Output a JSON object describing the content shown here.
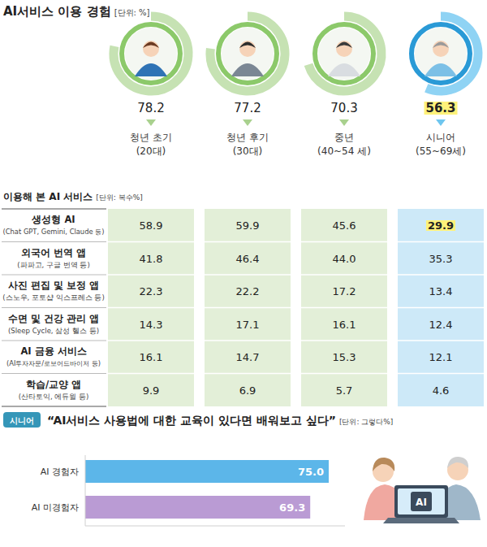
{
  "chart_data": [
    {
      "type": "donut",
      "title": "AI서비스 이용 경험",
      "subtitle": "[단위: %]",
      "categories": [
        "청년 초기 (20대)",
        "청년 후기 (30대)",
        "중년 (40~54 세)",
        "시니어 (55~69세)"
      ],
      "values": [
        78.2,
        77.2,
        70.3,
        56.3
      ],
      "colors": [
        "#c6e2b3",
        "#c6e2b3",
        "#c6e2b3",
        "#8fd3f4"
      ],
      "ylim": [
        0,
        100
      ],
      "data_labels": true
    },
    {
      "type": "bar",
      "orientation": "horizontal",
      "title": "“AI서비스 사용법에 대한 교육이 있다면 배워보고 싶다”",
      "subtitle": "[단위: 그렇다%]",
      "categories": [
        "AI 경험자",
        "AI 미경험자"
      ],
      "values": [
        75.0,
        69.3
      ],
      "value_labels": [
        "75.0",
        "69.3"
      ],
      "colors": [
        "#5cb6e9",
        "#ba9bd4"
      ],
      "xlim": [
        0,
        80
      ],
      "xticks": [],
      "tick_labels": "y",
      "data_labels": true
    }
  ],
  "table": {
    "title": "이용해 본 AI 서비스",
    "subtitle": "[단위: 복수%]",
    "rows": [
      {
        "label": "생성형 AI",
        "note": "(Chat GPT, Gemini, Claude 등)",
        "values": [
          "58.9",
          "59.9",
          "45.6",
          "29.9"
        ]
      },
      {
        "label": "외국어 번역 앱",
        "note": "(파파고, 구글 번역 등)",
        "values": [
          "41.8",
          "46.4",
          "44.0",
          "35.3"
        ]
      },
      {
        "label": "사진 편집 및 보정 앱",
        "note": "(스노우, 포토샵 익스프레스 등)",
        "values": [
          "22.3",
          "22.2",
          "17.2",
          "13.4"
        ]
      },
      {
        "label": "수면 및 건강 관리 앱",
        "note": "(Sleep Cycle, 삼성 헬스 등)",
        "values": [
          "14.3",
          "17.1",
          "16.1",
          "12.4"
        ]
      },
      {
        "label": "AI 금융 서비스",
        "note": "(AI투자자문/로보어드바이저 등)",
        "values": [
          "16.1",
          "14.7",
          "15.3",
          "12.1"
        ]
      },
      {
        "label": "학습/교양 앱",
        "note": "(산타토익, 에듀윌 등)",
        "values": [
          "9.9",
          "6.9",
          "5.7",
          "4.6"
        ]
      }
    ]
  },
  "senior_badge": "시니어",
  "illustration_text": "AI"
}
